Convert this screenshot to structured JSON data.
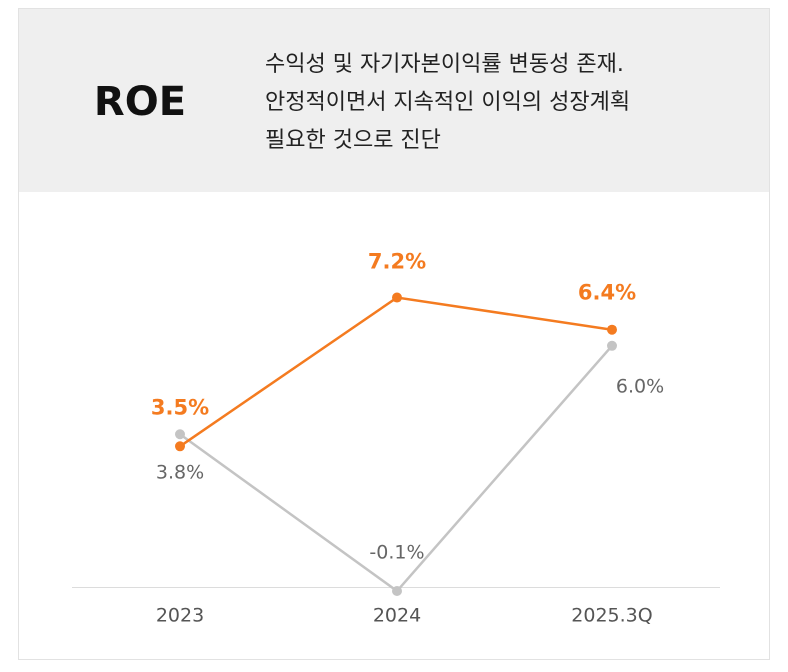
{
  "header": {
    "title": "ROE",
    "description": [
      "수익성 및 자기자본이익률 변동성 존재.",
      "안정적이면서 지속적인 이익의 성장계획",
      "필요한 것으로 진단"
    ]
  },
  "chart_data": {
    "type": "line",
    "categories": [
      "2023",
      "2024",
      "2025.3Q"
    ],
    "series": [
      {
        "color": "#f47b20",
        "values": [
          3.5,
          7.2,
          6.4
        ],
        "value_labels": [
          "3.5%",
          "7.2%",
          "6.4%"
        ]
      },
      {
        "color": "#c4c4c4",
        "values": [
          3.8,
          -0.1,
          6.0
        ],
        "value_labels": [
          "3.8%",
          "-0.1%",
          "6.0%"
        ]
      }
    ],
    "ylim": [
      0,
      8
    ]
  }
}
